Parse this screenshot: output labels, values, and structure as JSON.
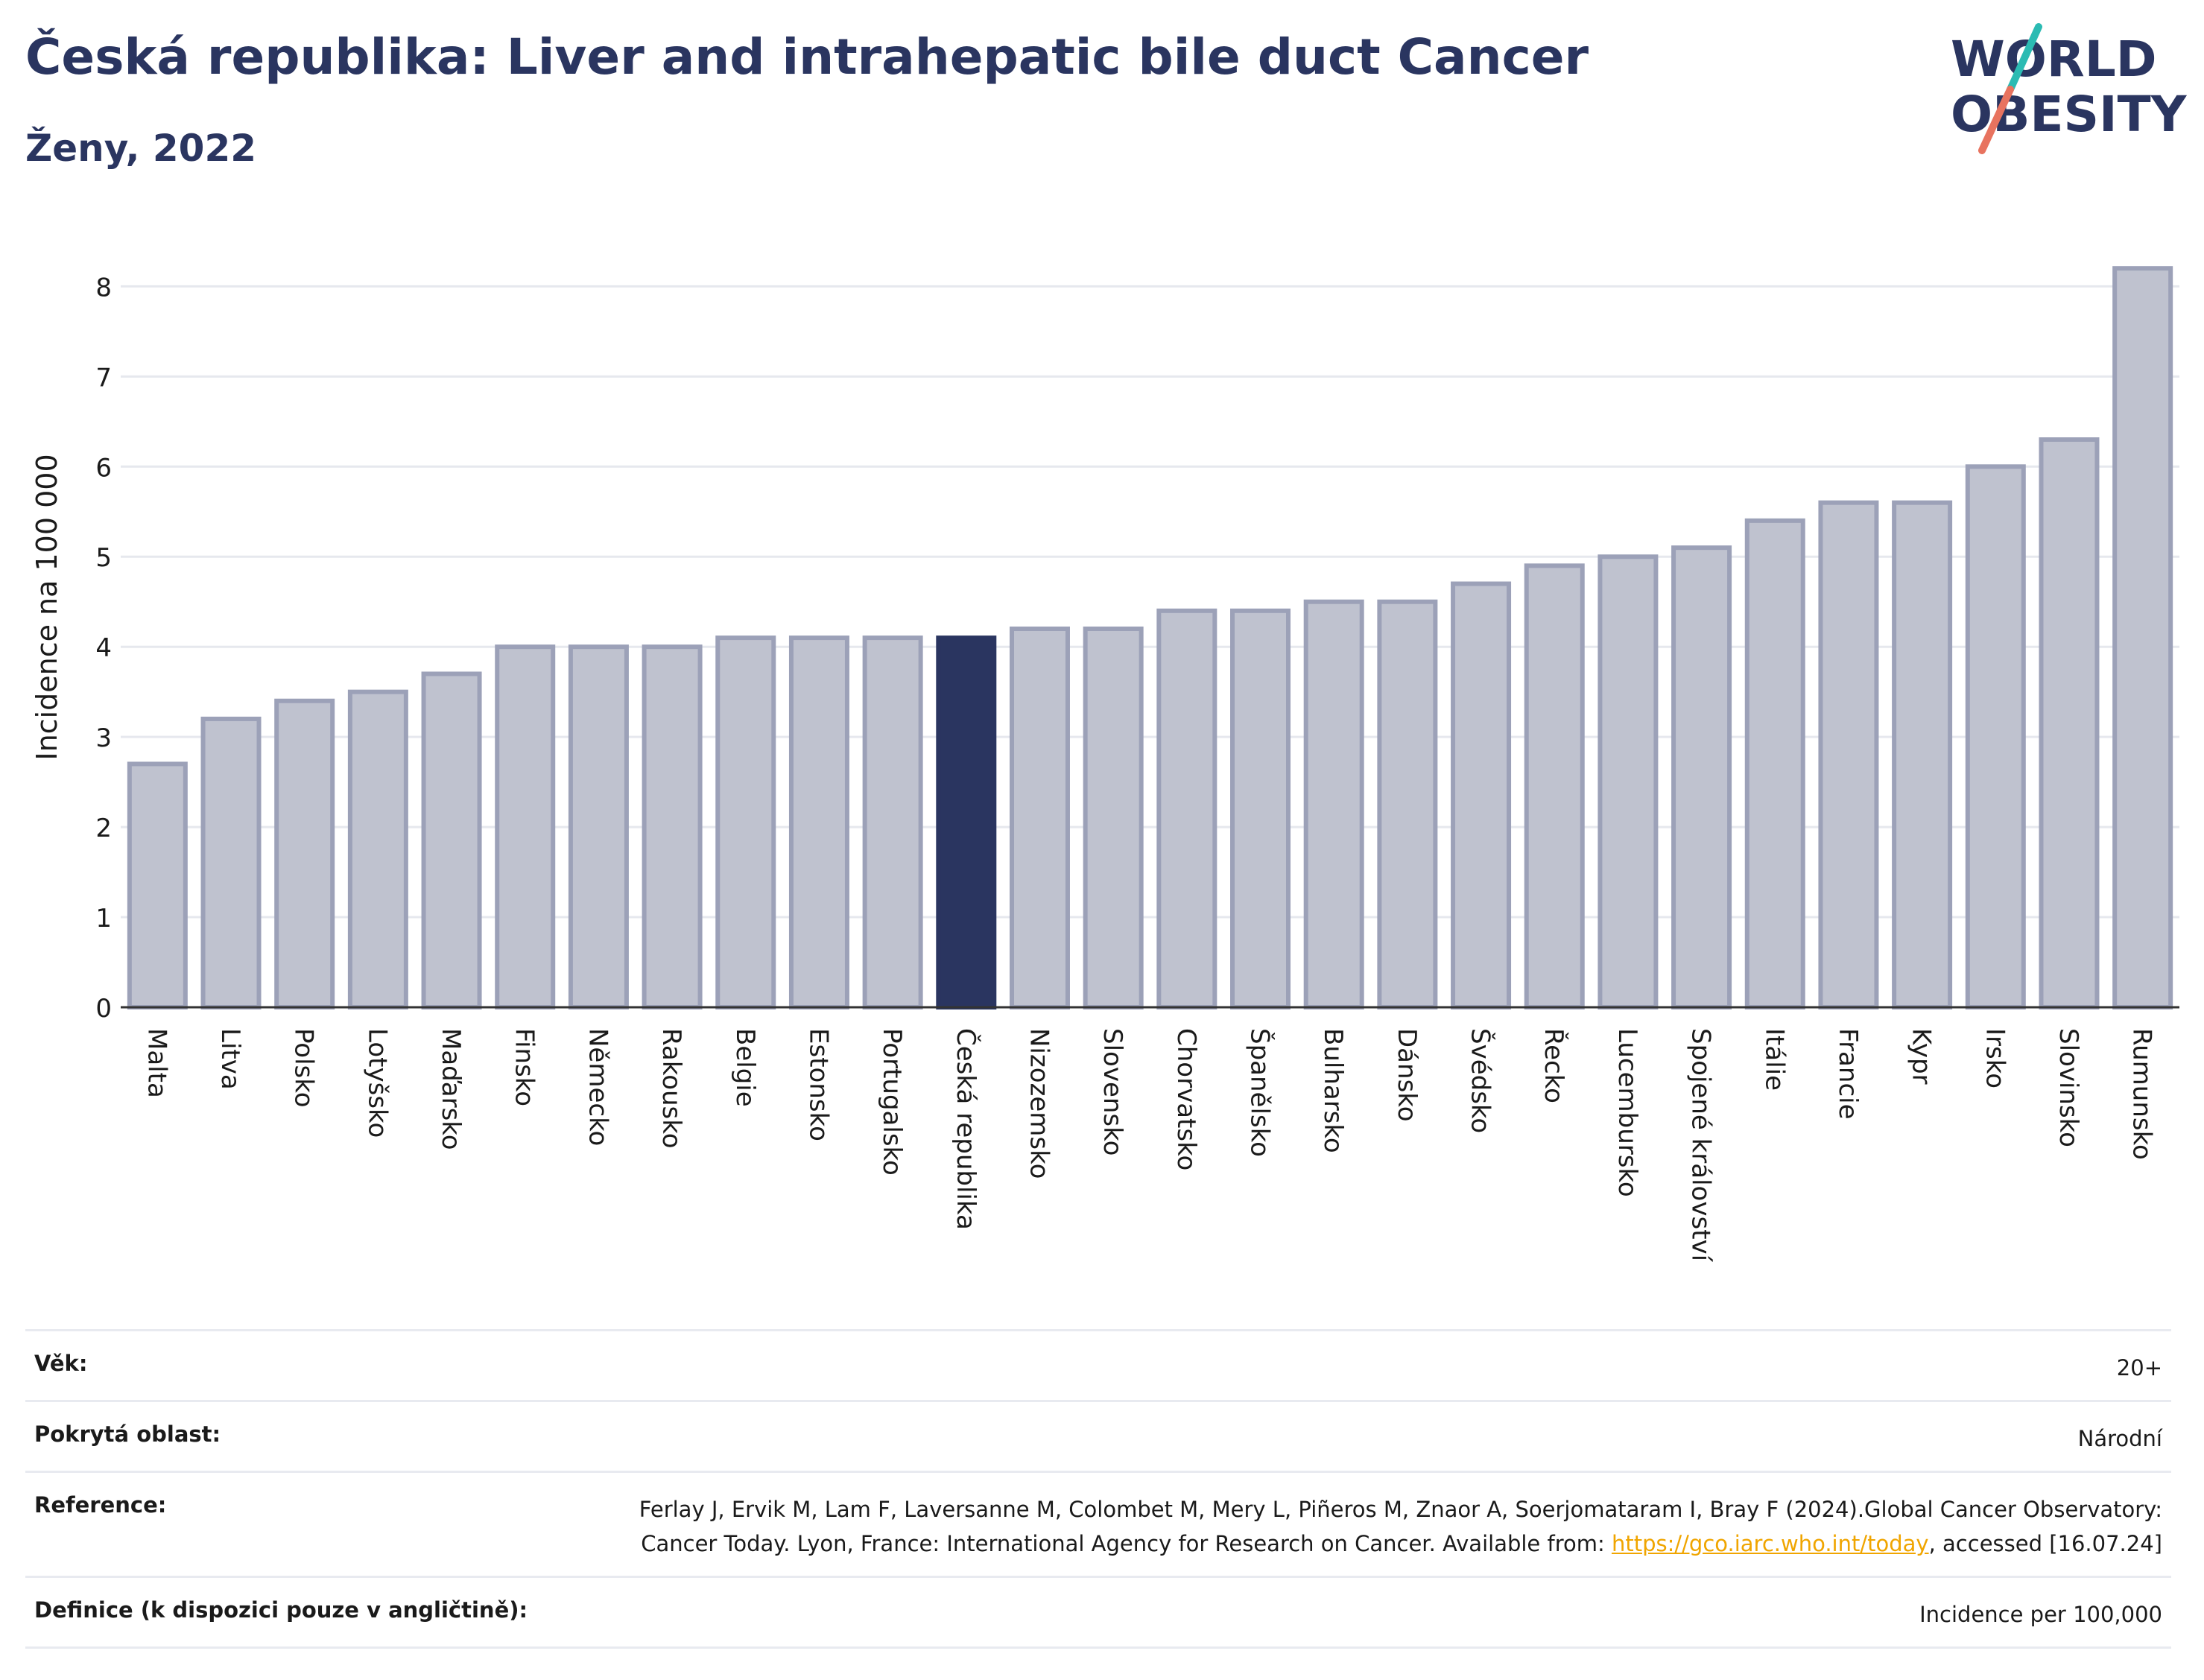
{
  "header": {
    "title": "Česká republika: Liver and intrahepatic bile duct Cancer",
    "subtitle": "Ženy, 2022"
  },
  "logo": {
    "line1": "WORLD",
    "line2": "OBESITY",
    "colors": {
      "text": "#2a3560",
      "slash_top": "#2bbbb3",
      "slash_bottom": "#e8735f"
    }
  },
  "colors": {
    "bar_fill": "#bfc2cf",
    "bar_stroke": "#9ca1b8",
    "highlight": "#2a3560",
    "grid": "#e6e8ee",
    "axis": "#333333"
  },
  "chart_data": {
    "type": "bar",
    "ylabel": "Incidence na 100 000",
    "ylim": [
      0,
      8.4
    ],
    "yticks": [
      0,
      1,
      2,
      3,
      4,
      5,
      6,
      7,
      8
    ],
    "grid": true,
    "highlight_category": "Česká republika",
    "categories": [
      "Malta",
      "Litva",
      "Polsko",
      "Lotyšsko",
      "Maďarsko",
      "Finsko",
      "Německo",
      "Rakousko",
      "Belgie",
      "Estonsko",
      "Portugalsko",
      "Česká republika",
      "Nizozemsko",
      "Slovensko",
      "Chorvatsko",
      "Španělsko",
      "Bulharsko",
      "Dánsko",
      "Švédsko",
      "Řecko",
      "Lucembursko",
      "Spojené království",
      "Itálie",
      "Francie",
      "Kypr",
      "Irsko",
      "Slovinsko",
      "Rumunsko"
    ],
    "values": [
      2.7,
      3.2,
      3.4,
      3.5,
      3.7,
      4.0,
      4.0,
      4.0,
      4.1,
      4.1,
      4.1,
      4.1,
      4.2,
      4.2,
      4.4,
      4.4,
      4.5,
      4.5,
      4.7,
      4.9,
      5.0,
      5.1,
      5.4,
      5.6,
      5.6,
      6.0,
      6.3,
      8.2
    ]
  },
  "metadata": {
    "age_label": "Věk:",
    "age_value": "20+",
    "area_label": "Pokrytá oblast:",
    "area_value": "Národní",
    "reference_label": "Reference:",
    "reference_text": "Ferlay J, Ervik M, Lam F, Laversanne M, Colombet M, Mery L, Piñeros M, Znaor A, Soerjomataram I, Bray F (2024).Global Cancer Observatory: Cancer Today. Lyon, France: International Agency for Research on Cancer. Available from: ",
    "reference_link": "https://gco.iarc.who.int/today",
    "reference_suffix": ", accessed [16.07.24]",
    "definition_label": "Definice (k dispozici pouze v angličtině):",
    "definition_value": "Incidence per 100,000"
  }
}
